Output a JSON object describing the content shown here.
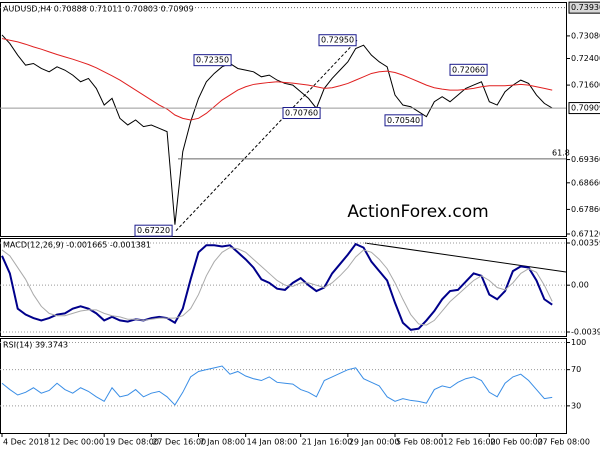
{
  "chart_data": [
    {
      "type": "line",
      "title": "AUDUSD,H4  0.70888 0.71011 0.70803 0.70909",
      "categories": [
        "4 Dec 2018",
        null,
        null,
        null,
        null,
        null,
        "12 Dec 00:00",
        null,
        null,
        null,
        null,
        null,
        null,
        "19 Dec 08:00",
        null,
        null,
        null,
        null,
        null,
        "27 Dec 16:00",
        null,
        null,
        null,
        null,
        null,
        "7 Jan 08:00",
        null,
        null,
        null,
        null,
        null,
        "14 Jan 08:00",
        null,
        null,
        null,
        null,
        null,
        null,
        "21 Jan 16:00",
        null,
        null,
        null,
        null,
        null,
        "29 Jan 00:00",
        null,
        null,
        null,
        null,
        null,
        "5 Feb 08:00",
        null,
        null,
        null,
        null,
        null,
        "12 Feb 16:00",
        null,
        null,
        null,
        null,
        null,
        "20 Feb 00:00",
        null,
        null,
        null,
        null,
        null,
        "27 Feb 08:00",
        null,
        null
      ],
      "series": [
        {
          "color": "#000000",
          "values": [
            0.7311,
            0.7285,
            0.725,
            0.722,
            0.7225,
            0.721,
            0.72,
            0.7215,
            0.7205,
            0.719,
            0.717,
            0.718,
            0.715,
            0.71,
            0.712,
            0.706,
            0.704,
            0.7055,
            0.7035,
            0.704,
            0.703,
            0.702,
            0.674,
            0.696,
            0.705,
            0.712,
            0.717,
            0.7195,
            0.7215,
            0.7225,
            0.721,
            0.7205,
            0.72,
            0.7185,
            0.719,
            0.7175,
            0.7165,
            0.716,
            0.714,
            0.712,
            0.709,
            0.715,
            0.718,
            0.7205,
            0.723,
            0.727,
            0.728,
            0.725,
            0.723,
            0.7215,
            0.713,
            0.71,
            0.7095,
            0.708,
            0.7065,
            0.711,
            0.7125,
            0.711,
            0.713,
            0.715,
            0.716,
            0.717,
            0.711,
            0.71,
            0.714,
            0.716,
            0.7175,
            0.7165,
            0.713,
            0.7105,
            0.70909
          ]
        },
        {
          "color": "#e02020",
          "values": [
            0.73,
            0.7295,
            0.729,
            0.7283,
            0.7275,
            0.7268,
            0.726,
            0.7252,
            0.7245,
            0.7238,
            0.723,
            0.7222,
            0.7212,
            0.72,
            0.7188,
            0.7175,
            0.716,
            0.7145,
            0.713,
            0.7115,
            0.71,
            0.7088,
            0.707,
            0.706,
            0.7055,
            0.706,
            0.7075,
            0.7095,
            0.7115,
            0.713,
            0.7145,
            0.7155,
            0.7162,
            0.7165,
            0.7168,
            0.717,
            0.7168,
            0.7166,
            0.7163,
            0.716,
            0.7155,
            0.715,
            0.7152,
            0.7158,
            0.7165,
            0.7175,
            0.7185,
            0.7195,
            0.72,
            0.7202,
            0.7198,
            0.719,
            0.718,
            0.717,
            0.716,
            0.7152,
            0.7148,
            0.7145,
            0.7145,
            0.7147,
            0.715,
            0.7155,
            0.7158,
            0.7158,
            0.7158,
            0.716,
            0.7162,
            0.716,
            0.7155,
            0.715,
            0.7145
          ]
        }
      ],
      "ylim": [
        0.6706,
        0.741
      ],
      "yticks": [
        {
          "value": 0.7308,
          "label": "0.73080"
        },
        {
          "value": 0.724,
          "label": "0.72400"
        },
        {
          "value": 0.716,
          "label": "0.71600"
        },
        {
          "value": 0.6936,
          "label": "0.69360"
        },
        {
          "value": 0.6866,
          "label": "0.68660"
        },
        {
          "value": 0.6786,
          "label": "0.67860"
        },
        {
          "value": 0.6712,
          "label": "0.67120"
        }
      ],
      "grid": false,
      "high_line": {
        "value": 0.7393,
        "label": "0.73930"
      },
      "current_price": {
        "value": 0.70909,
        "label": "0.70909"
      },
      "fib_level": {
        "value": 0.6938,
        "label": "61.8"
      },
      "annotations": [
        {
          "value": 0.7235,
          "label": "0.72350"
        },
        {
          "value": 0.7295,
          "label": "0.72950"
        },
        {
          "value": 0.7206,
          "label": "0.72060"
        },
        {
          "value": 0.7076,
          "label": "0.70760"
        },
        {
          "value": 0.7054,
          "label": "0.70540"
        },
        {
          "value": 0.6722,
          "label": "0.67220"
        }
      ],
      "watermark": "ActionForex.com"
    },
    {
      "type": "line",
      "title": "MACD(12,26,9) -0.001665 -0.001381",
      "series": [
        {
          "color": "#00008b",
          "values": [
            0.0025,
            0.001,
            -0.002,
            -0.0025,
            -0.0028,
            -0.003,
            -0.0028,
            -0.0025,
            -0.0024,
            -0.002,
            -0.0018,
            -0.002,
            -0.0024,
            -0.003,
            -0.0027,
            -0.003,
            -0.0031,
            -0.0029,
            -0.003,
            -0.0028,
            -0.0027,
            -0.0028,
            -0.0032,
            -0.002,
            0.0005,
            0.0028,
            0.0034,
            0.0034,
            0.0033,
            0.0034,
            0.0028,
            0.0022,
            0.0015,
            0.0005,
            0.0002,
            -0.0003,
            -0.0004,
            0.0002,
            0.0006,
            0.0,
            -0.0005,
            -0.0002,
            0.001,
            0.0018,
            0.0026,
            0.0035,
            0.0032,
            0.002,
            0.0012,
            0.0004,
            -0.0015,
            -0.0032,
            -0.0038,
            -0.0037,
            -0.003,
            -0.0022,
            -0.0012,
            -0.0005,
            -0.0004,
            0.0003,
            0.001,
            0.0008,
            -0.0008,
            -0.0012,
            -0.0005,
            0.0012,
            0.0016,
            0.0015,
            0.0004,
            -0.0012,
            -0.001665
          ]
        },
        {
          "color": "#aaaaaa",
          "values": [
            0.003,
            0.0025,
            0.0015,
            0.0005,
            -0.0008,
            -0.0018,
            -0.0024,
            -0.0026,
            -0.0026,
            -0.0024,
            -0.0022,
            -0.0021,
            -0.0021,
            -0.0024,
            -0.0026,
            -0.0027,
            -0.0029,
            -0.0029,
            -0.003,
            -0.0029,
            -0.0028,
            -0.0028,
            -0.0028,
            -0.0026,
            -0.002,
            -0.0008,
            0.0008,
            0.002,
            0.0028,
            0.0032,
            0.0031,
            0.0028,
            0.0022,
            0.0016,
            0.001,
            0.0004,
            0.0,
            -0.0001,
            0.0002,
            0.0002,
            0.0,
            -0.0002,
            0.0002,
            0.0008,
            0.0015,
            0.0024,
            0.003,
            0.0028,
            0.0022,
            0.0014,
            0.0002,
            -0.0012,
            -0.0025,
            -0.0033,
            -0.0034,
            -0.003,
            -0.0022,
            -0.0014,
            -0.0008,
            -0.0002,
            0.0004,
            0.0008,
            0.0004,
            -0.0002,
            -0.0004,
            0.0002,
            0.001,
            0.0014,
            0.0011,
            0.0,
            -0.001381
          ]
        }
      ],
      "ylim": [
        -0.004327,
        0.004018
      ],
      "yticks": [
        0.003592,
        {
          "value": 0,
          "label": "0.00"
        },
        -0.003986
      ],
      "grid": true
    },
    {
      "type": "line",
      "title": "RSI(14) 39.3743",
      "series": [
        {
          "color": "#3a8ee6",
          "values": [
            55,
            48,
            42,
            45,
            50,
            44,
            47,
            55,
            48,
            44,
            50,
            46,
            40,
            35,
            50,
            40,
            42,
            48,
            40,
            44,
            46,
            40,
            31,
            45,
            62,
            68,
            70,
            72,
            74,
            65,
            68,
            63,
            60,
            58,
            62,
            56,
            55,
            54,
            48,
            45,
            40,
            58,
            62,
            66,
            70,
            72,
            60,
            56,
            52,
            40,
            35,
            38,
            36,
            35,
            33,
            48,
            52,
            50,
            56,
            60,
            62,
            58,
            45,
            40,
            55,
            62,
            65,
            58,
            48,
            38,
            39.3743
          ]
        }
      ],
      "ylim": [
        0,
        105
      ],
      "yticks": [
        100,
        70,
        30
      ],
      "grid": true
    }
  ]
}
